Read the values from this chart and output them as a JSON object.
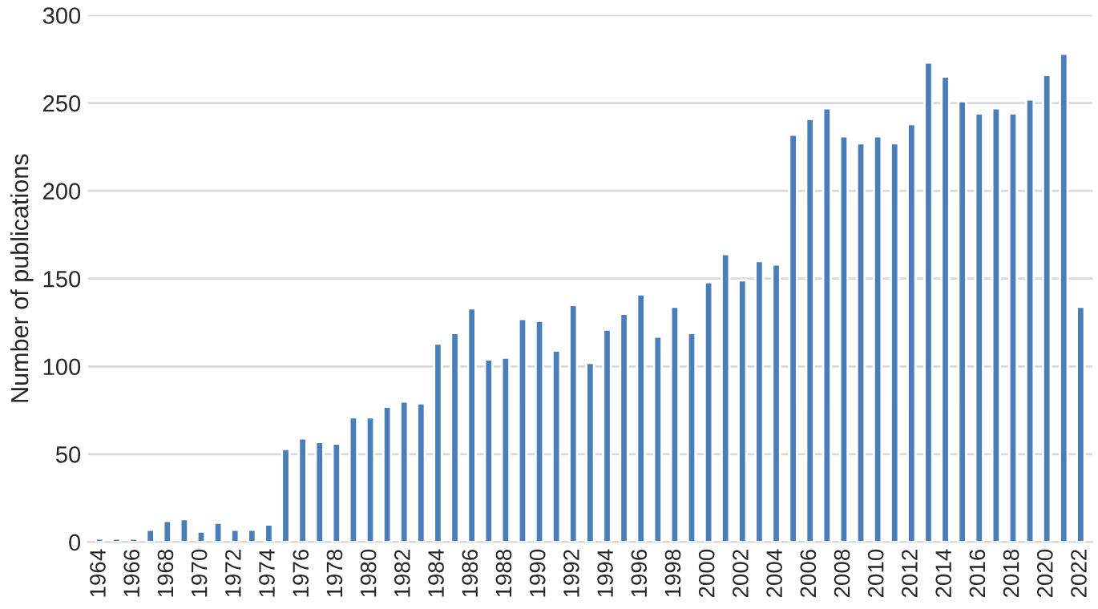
{
  "chart_data": {
    "type": "bar",
    "ylabel": "Number of publications",
    "categories": [
      "1964",
      null,
      "1966",
      null,
      "1968",
      null,
      "1970",
      null,
      "1972",
      null,
      "1974",
      null,
      "1976",
      null,
      "1978",
      null,
      "1980",
      null,
      "1982",
      null,
      "1984",
      null,
      "1986",
      null,
      "1988",
      null,
      "1990",
      null,
      "1992",
      null,
      "1994",
      null,
      "1996",
      null,
      "1998",
      null,
      "2000",
      null,
      "2002",
      null,
      "2004",
      null,
      "2006",
      null,
      "2008",
      null,
      "2010",
      null,
      "2012",
      null,
      "2014",
      null,
      "2016",
      null,
      "2018",
      null,
      "2020",
      null,
      "2022"
    ],
    "values": [
      2,
      2,
      2,
      7,
      12,
      13,
      6,
      11,
      7,
      7,
      10,
      53,
      59,
      57,
      56,
      71,
      71,
      77,
      80,
      79,
      113,
      119,
      133,
      104,
      105,
      127,
      126,
      109,
      135,
      102,
      121,
      130,
      141,
      117,
      134,
      119,
      148,
      164,
      149,
      160,
      158,
      232,
      241,
      247,
      231,
      227,
      231,
      227,
      238,
      273,
      265,
      251,
      244,
      247,
      244,
      252,
      266,
      278,
      134
    ],
    "color": "#4a7ebb",
    "ylim": [
      0,
      300
    ],
    "yticks": [
      0,
      50,
      100,
      150,
      200,
      250,
      300
    ],
    "grid": "y"
  }
}
